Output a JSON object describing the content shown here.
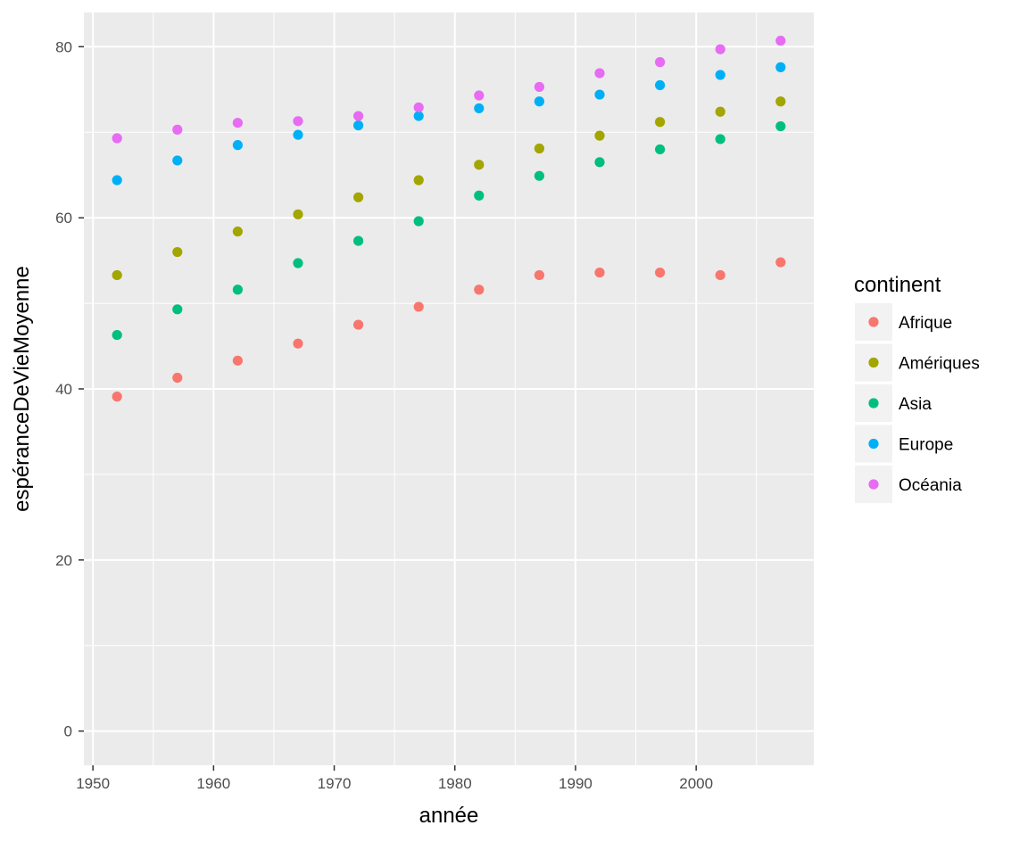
{
  "chart_data": {
    "type": "scatter",
    "xlabel": "année",
    "ylabel": "espéranceDeVieMoyenne",
    "xlim": [
      1949.25,
      2009.75
    ],
    "ylim": [
      -4,
      84
    ],
    "x_ticks": [
      1950,
      1960,
      1970,
      1980,
      1990,
      2000
    ],
    "y_ticks": [
      0,
      20,
      40,
      60,
      80
    ],
    "grid": true,
    "legend": {
      "title": "continent",
      "position": "right"
    },
    "x": [
      1952,
      1957,
      1962,
      1967,
      1972,
      1977,
      1982,
      1987,
      1992,
      1997,
      2002,
      2007
    ],
    "series": [
      {
        "name": "Afrique",
        "color": "#F8766D",
        "values": [
          39.1,
          41.3,
          43.3,
          45.3,
          47.5,
          49.6,
          51.6,
          53.3,
          53.6,
          53.6,
          53.3,
          54.8
        ]
      },
      {
        "name": "Amériques",
        "color": "#A3A500",
        "values": [
          53.3,
          56.0,
          58.4,
          60.4,
          62.4,
          64.4,
          66.2,
          68.1,
          69.6,
          71.2,
          72.4,
          73.6
        ]
      },
      {
        "name": "Asia",
        "color": "#00BF7D",
        "values": [
          46.3,
          49.3,
          51.6,
          54.7,
          57.3,
          59.6,
          62.6,
          64.9,
          66.5,
          68.0,
          69.2,
          70.7
        ]
      },
      {
        "name": "Europe",
        "color": "#00B0F6",
        "values": [
          64.4,
          66.7,
          68.5,
          69.7,
          70.8,
          71.9,
          72.8,
          73.6,
          74.4,
          75.5,
          76.7,
          77.6
        ]
      },
      {
        "name": "Océania",
        "color": "#E76BF3",
        "values": [
          69.3,
          70.3,
          71.1,
          71.3,
          71.9,
          72.9,
          74.3,
          75.3,
          76.9,
          78.2,
          79.7,
          80.7
        ]
      }
    ]
  }
}
